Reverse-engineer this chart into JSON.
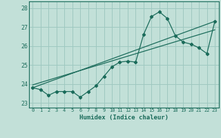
{
  "title": "",
  "xlabel": "Humidex (Indice chaleur)",
  "bg_color": "#c2e0d8",
  "grid_color": "#9ec8c0",
  "line_color": "#1a6b5a",
  "xlim": [
    -0.5,
    23.5
  ],
  "ylim": [
    22.75,
    28.35
  ],
  "xticks": [
    0,
    1,
    2,
    3,
    4,
    5,
    6,
    7,
    8,
    9,
    10,
    11,
    12,
    13,
    14,
    15,
    16,
    17,
    18,
    19,
    20,
    21,
    22,
    23
  ],
  "yticks": [
    23,
    24,
    25,
    26,
    27,
    28
  ],
  "data_x": [
    0,
    1,
    2,
    3,
    4,
    5,
    6,
    7,
    8,
    9,
    10,
    11,
    12,
    13,
    14,
    15,
    16,
    17,
    18,
    19,
    20,
    21,
    22,
    23
  ],
  "data_y": [
    23.8,
    23.7,
    23.4,
    23.6,
    23.6,
    23.6,
    23.3,
    23.6,
    23.9,
    24.4,
    24.9,
    25.15,
    25.2,
    25.15,
    26.6,
    27.55,
    27.8,
    27.45,
    26.55,
    26.2,
    26.1,
    25.9,
    25.6,
    27.3
  ],
  "trend1_x": [
    0,
    23
  ],
  "trend1_y": [
    23.8,
    27.3
  ],
  "trend2_x": [
    0,
    23
  ],
  "trend2_y": [
    23.95,
    26.85
  ]
}
